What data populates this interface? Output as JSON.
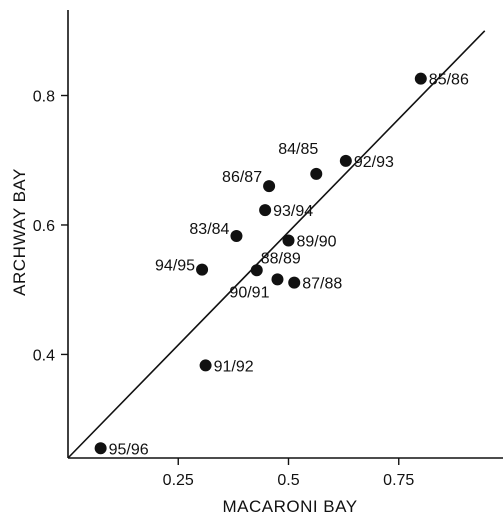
{
  "chart_data": {
    "type": "scatter",
    "title": "",
    "xlabel": "MACARONI BAY",
    "ylabel": "ARCHWAY BAY",
    "xlim": [
      0.0,
      0.95
    ],
    "ylim": [
      0.24,
      0.9
    ],
    "x_ticks": [
      0.25,
      0.5,
      0.75
    ],
    "x_tick_labels": [
      "0.25",
      "0.5",
      "0.75"
    ],
    "y_ticks": [
      0.4,
      0.6,
      0.8
    ],
    "y_tick_labels": [
      "0.4",
      "0.6",
      "0.8"
    ],
    "grid": false,
    "points": [
      {
        "label": "85/86",
        "x": 0.8,
        "y": 0.826
      },
      {
        "label": "92/93",
        "x": 0.63,
        "y": 0.699
      },
      {
        "label": "84/85",
        "x": 0.563,
        "y": 0.679
      },
      {
        "label": "86/87",
        "x": 0.456,
        "y": 0.66
      },
      {
        "label": "93/94",
        "x": 0.447,
        "y": 0.623
      },
      {
        "label": "83/84",
        "x": 0.382,
        "y": 0.583
      },
      {
        "label": "89/90",
        "x": 0.5,
        "y": 0.576
      },
      {
        "label": "88/89",
        "x": 0.428,
        "y": 0.53
      },
      {
        "label": "94/95",
        "x": 0.304,
        "y": 0.531
      },
      {
        "label": "90/91",
        "x": 0.475,
        "y": 0.516
      },
      {
        "label": "87/88",
        "x": 0.513,
        "y": 0.511
      },
      {
        "label": "91/92",
        "x": 0.312,
        "y": 0.383
      },
      {
        "label": "95/96",
        "x": 0.074,
        "y": 0.255
      }
    ],
    "fit_line": {
      "x": [
        0.0,
        0.945
      ],
      "y": [
        0.24,
        0.9
      ]
    }
  }
}
